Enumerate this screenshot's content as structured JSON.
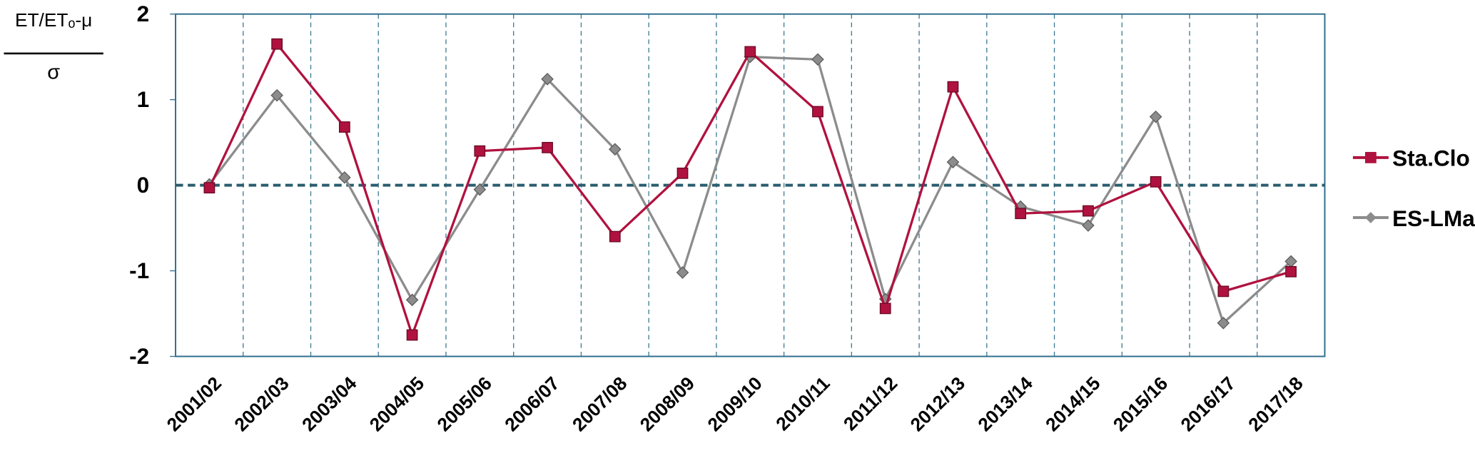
{
  "chart_data": {
    "type": "line",
    "ylabel": {
      "numerator": "ET/ETₒ-μ",
      "denominator": "σ"
    },
    "categories": [
      "2001/02",
      "2002/03",
      "2003/04",
      "2004/05",
      "2005/06",
      "2006/07",
      "2007/08",
      "2008/09",
      "2009/10",
      "2010/11",
      "2011/12",
      "2012/13",
      "2013/14",
      "2014/15",
      "2015/16",
      "2016/17",
      "2017/18"
    ],
    "series": [
      {
        "name": "Sta.Clo",
        "color": "#b0123f",
        "marker": "square",
        "values": [
          -0.03,
          1.65,
          0.68,
          -1.75,
          0.4,
          0.44,
          -0.6,
          0.14,
          1.56,
          0.86,
          -1.44,
          1.15,
          -0.33,
          -0.3,
          0.04,
          -1.24,
          -1.01
        ]
      },
      {
        "name": "ES-LMa",
        "color": "#8c8c8c",
        "marker": "diamond",
        "values": [
          0.01,
          1.05,
          0.09,
          -1.34,
          -0.05,
          1.24,
          0.42,
          -1.02,
          1.5,
          1.47,
          -1.33,
          0.27,
          -0.25,
          -0.47,
          0.8,
          -1.61,
          -0.89
        ]
      }
    ],
    "ylim": [
      -2,
      2
    ],
    "yticks": [
      -2,
      -1,
      0,
      1,
      2
    ],
    "grid": true,
    "legend": "right"
  }
}
